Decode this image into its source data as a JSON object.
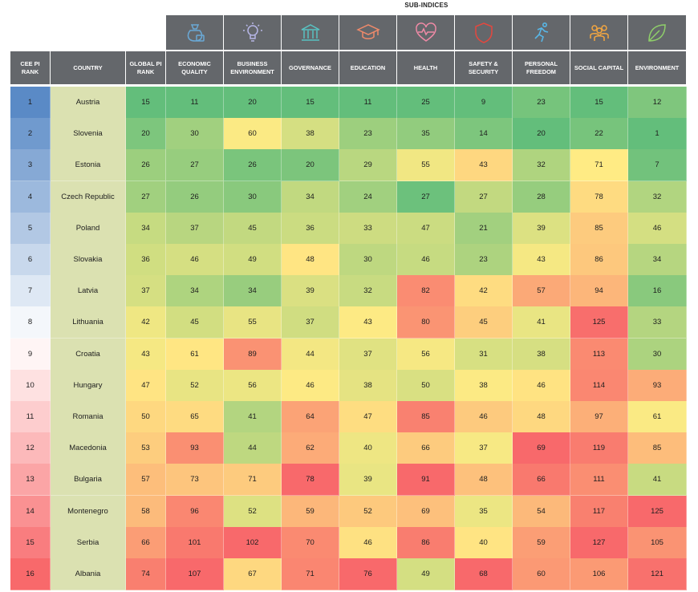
{
  "chart_data": {
    "type": "table",
    "title": "SUB-INDICES",
    "columns": [
      "CEE PI RANK",
      "COUNTRY",
      "GLOBAL PI RANK",
      "ECONOMIC QUALITY",
      "BUSINESS ENVIRONMENT",
      "GOVERNANCE",
      "EDUCATION",
      "HEALTH",
      "SAFETY & SECURITY",
      "PERSONAL FREEDOM",
      "SOCIAL CAPITAL",
      "ENVIRONMENT"
    ],
    "column_icons": [
      "",
      "",
      "",
      "money-bag-icon",
      "lightbulb-icon",
      "government-building-icon",
      "graduation-cap-icon",
      "heart-pulse-icon",
      "shield-icon",
      "running-person-icon",
      "people-group-icon",
      "leaf-icon"
    ],
    "rows": [
      {
        "rank": 1,
        "country": "Austria",
        "global": 15,
        "sub": [
          11,
          20,
          15,
          11,
          25,
          9,
          23,
          15,
          12
        ]
      },
      {
        "rank": 2,
        "country": "Slovenia",
        "global": 20,
        "sub": [
          30,
          60,
          38,
          23,
          35,
          14,
          20,
          22,
          1
        ]
      },
      {
        "rank": 3,
        "country": "Estonia",
        "global": 26,
        "sub": [
          27,
          26,
          20,
          29,
          55,
          43,
          32,
          71,
          7
        ]
      },
      {
        "rank": 4,
        "country": "Czech Republic",
        "global": 27,
        "sub": [
          26,
          30,
          34,
          24,
          27,
          27,
          28,
          78,
          32
        ]
      },
      {
        "rank": 5,
        "country": "Poland",
        "global": 34,
        "sub": [
          37,
          45,
          36,
          33,
          47,
          21,
          39,
          85,
          46
        ]
      },
      {
        "rank": 6,
        "country": "Slovakia",
        "global": 36,
        "sub": [
          46,
          49,
          48,
          30,
          46,
          23,
          43,
          86,
          34
        ]
      },
      {
        "rank": 7,
        "country": "Latvia",
        "global": 37,
        "sub": [
          34,
          34,
          39,
          32,
          82,
          42,
          57,
          94,
          16
        ]
      },
      {
        "rank": 8,
        "country": "Lithuania",
        "global": 42,
        "sub": [
          45,
          55,
          37,
          43,
          80,
          45,
          41,
          125,
          33
        ]
      },
      {
        "rank": 9,
        "country": "Croatia",
        "global": 43,
        "sub": [
          61,
          89,
          44,
          37,
          56,
          31,
          38,
          113,
          30
        ]
      },
      {
        "rank": 10,
        "country": "Hungary",
        "global": 47,
        "sub": [
          52,
          56,
          46,
          38,
          50,
          38,
          46,
          114,
          93
        ]
      },
      {
        "rank": 11,
        "country": "Romania",
        "global": 50,
        "sub": [
          65,
          41,
          64,
          47,
          85,
          46,
          48,
          97,
          61
        ]
      },
      {
        "rank": 12,
        "country": "Macedonia",
        "global": 53,
        "sub": [
          93,
          44,
          62,
          40,
          66,
          37,
          69,
          119,
          85
        ]
      },
      {
        "rank": 13,
        "country": "Bulgaria",
        "global": 57,
        "sub": [
          73,
          71,
          78,
          39,
          91,
          48,
          66,
          111,
          41
        ]
      },
      {
        "rank": 14,
        "country": "Montenegro",
        "global": 58,
        "sub": [
          96,
          52,
          59,
          52,
          69,
          35,
          54,
          117,
          125
        ]
      },
      {
        "rank": 15,
        "country": "Serbia",
        "global": 66,
        "sub": [
          101,
          102,
          70,
          46,
          86,
          40,
          59,
          127,
          105
        ]
      },
      {
        "rank": 16,
        "country": "Albania",
        "global": 74,
        "sub": [
          107,
          67,
          71,
          76,
          49,
          68,
          60,
          106,
          121
        ]
      }
    ]
  },
  "colors": {
    "header_bg": "#64676b",
    "good": "#63be7b",
    "mid": "#ffeb84",
    "bad": "#f8696b",
    "rank_top": "#5a8ac6",
    "rank_bottom": "#f8696b",
    "country_bg": "#dbe1b1"
  }
}
